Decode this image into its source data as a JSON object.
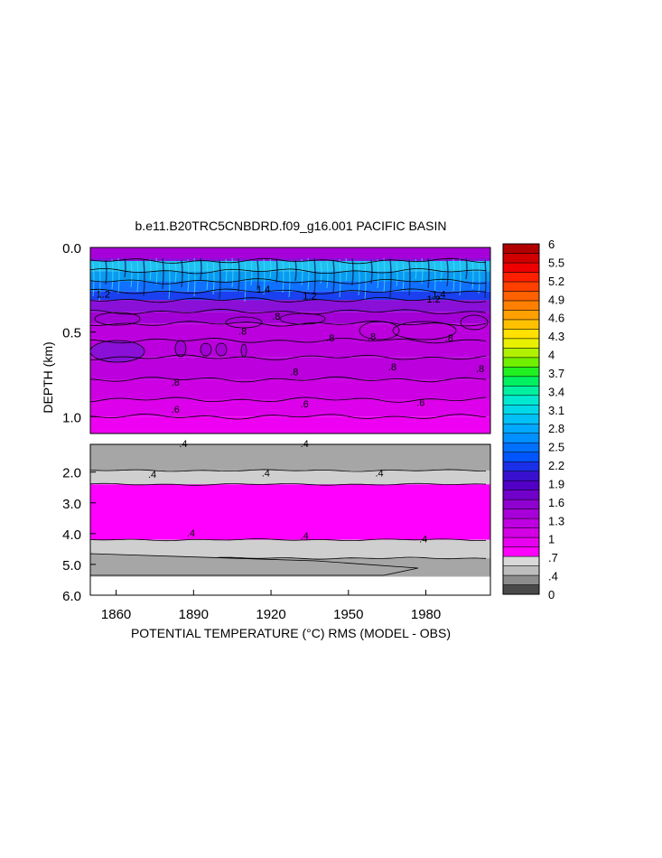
{
  "chart_data": {
    "type": "heatmap",
    "title": "b.e11.B20TRC5CNBDRD.f09_g16.001 PACIFIC BASIN",
    "xlabel": "POTENTIAL TEMPERATURE (°C) RMS (MODEL - OBS)",
    "ylabel": "DEPTH (km)",
    "x_ticks": [
      "1860",
      "1890",
      "1920",
      "1950",
      "1980"
    ],
    "xlim": [
      1850,
      2005
    ],
    "panels": [
      {
        "name": "upper",
        "ylim": [
          0.0,
          1.1
        ],
        "y_ticks": [
          "0.0",
          "0.5",
          "1.0"
        ],
        "bands": [
          {
            "depth_top": 0.0,
            "depth_bottom": 0.08,
            "value": 1.0
          },
          {
            "depth_top": 0.08,
            "depth_bottom": 0.14,
            "value": 2.2
          },
          {
            "depth_top": 0.14,
            "depth_bottom": 0.2,
            "value": 1.9
          },
          {
            "depth_top": 0.2,
            "depth_bottom": 0.26,
            "value": 1.6
          },
          {
            "depth_top": 0.26,
            "depth_bottom": 0.31,
            "value": 1.3
          },
          {
            "depth_top": 0.31,
            "depth_bottom": 0.38,
            "value": 1.0
          },
          {
            "depth_top": 0.38,
            "depth_bottom": 0.45,
            "value": 0.9
          },
          {
            "depth_top": 0.45,
            "depth_bottom": 0.55,
            "value": 0.8
          },
          {
            "depth_top": 0.55,
            "depth_bottom": 0.65,
            "value": 0.8
          },
          {
            "depth_top": 0.65,
            "depth_bottom": 0.78,
            "value": 0.8
          },
          {
            "depth_top": 0.78,
            "depth_bottom": 0.9,
            "value": 0.7
          },
          {
            "depth_top": 0.9,
            "depth_bottom": 1.0,
            "value": 0.6
          },
          {
            "depth_top": 1.0,
            "depth_bottom": 1.1,
            "value": 0.5
          }
        ],
        "contour_labels": [
          {
            "text": "1.2",
            "x": 1855,
            "depth": 0.28
          },
          {
            "text": "1.4",
            "x": 1917,
            "depth": 0.25
          },
          {
            "text": "1.2",
            "x": 1935,
            "depth": 0.29
          },
          {
            "text": "1.2",
            "x": 1983,
            "depth": 0.31
          },
          {
            "text": "1.4",
            "x": 1985,
            "depth": 0.28
          },
          {
            "text": ".8",
            "x": 1909,
            "depth": 0.5
          },
          {
            "text": ".8",
            "x": 1922,
            "depth": 0.41
          },
          {
            "text": ".8",
            "x": 1943,
            "depth": 0.54
          },
          {
            "text": ".8",
            "x": 1959,
            "depth": 0.53
          },
          {
            "text": ".8",
            "x": 1989,
            "depth": 0.54
          },
          {
            "text": ".8",
            "x": 1929,
            "depth": 0.74
          },
          {
            "text": ".8",
            "x": 1967,
            "depth": 0.71
          },
          {
            "text": ".8",
            "x": 1883,
            "depth": 0.8
          },
          {
            "text": ".8",
            "x": 2001,
            "depth": 0.72
          },
          {
            "text": ".6",
            "x": 1883,
            "depth": 0.96
          },
          {
            "text": ".6",
            "x": 1933,
            "depth": 0.93
          },
          {
            "text": ".6",
            "x": 1978,
            "depth": 0.92
          }
        ]
      },
      {
        "name": "lower",
        "ylim": [
          1.1,
          6.0
        ],
        "y_ticks": [
          "2.0",
          "3.0",
          "4.0",
          "5.0",
          "6.0"
        ],
        "bands": [
          {
            "depth_top": 1.1,
            "depth_bottom": 1.95,
            "value": 0.2
          },
          {
            "depth_top": 1.95,
            "depth_bottom": 2.4,
            "value": 0.3
          },
          {
            "depth_top": 2.4,
            "depth_bottom": 4.2,
            "value": 0.4
          },
          {
            "depth_top": 4.2,
            "depth_bottom": 4.8,
            "value": 0.3
          },
          {
            "depth_top": 4.8,
            "depth_bottom": 5.4,
            "value": 0.2
          }
        ],
        "contour_labels": [
          {
            "text": ".4",
            "x": 1886,
            "depth": 1.1
          },
          {
            "text": ".4",
            "x": 1933,
            "depth": 1.1
          },
          {
            "text": ".4",
            "x": 1874,
            "depth": 2.1
          },
          {
            "text": ".4",
            "x": 1918,
            "depth": 2.05
          },
          {
            "text": ".4",
            "x": 1962,
            "depth": 2.05
          },
          {
            "text": ".4",
            "x": 1889,
            "depth": 4.0
          },
          {
            "text": ".4",
            "x": 1933,
            "depth": 4.1
          },
          {
            "text": ".4",
            "x": 1979,
            "depth": 4.2
          }
        ]
      }
    ],
    "colorbar": {
      "labels": [
        "6",
        "5.5",
        "5.2",
        "4.9",
        "4.6",
        "4.3",
        "4",
        "3.7",
        "3.4",
        "3.1",
        "2.8",
        "2.5",
        "2.2",
        "1.9",
        "1.6",
        "1.3",
        "1",
        ".7",
        ".4",
        "0"
      ],
      "colors": [
        "#4a4a4a",
        "#8c8c8c",
        "#bdbdbd",
        "#d8d8d8",
        "#ff00ff",
        "#e800f0",
        "#d300e6",
        "#bf00e0",
        "#a800d8",
        "#8f00d0",
        "#7100cb",
        "#5200c6",
        "#3a10d0",
        "#1a30e8",
        "#0055ff",
        "#0070ff",
        "#0090ff",
        "#00a8ff",
        "#00c0f5",
        "#00d8e8",
        "#00e8d0",
        "#00f0a0",
        "#00f060",
        "#20f020",
        "#70f000",
        "#b0f000",
        "#e8f000",
        "#ffe000",
        "#ffc000",
        "#ffa000",
        "#ff8000",
        "#ff6000",
        "#ff4000",
        "#ff2000",
        "#ee0000",
        "#d00000",
        "#b00000"
      ]
    }
  }
}
